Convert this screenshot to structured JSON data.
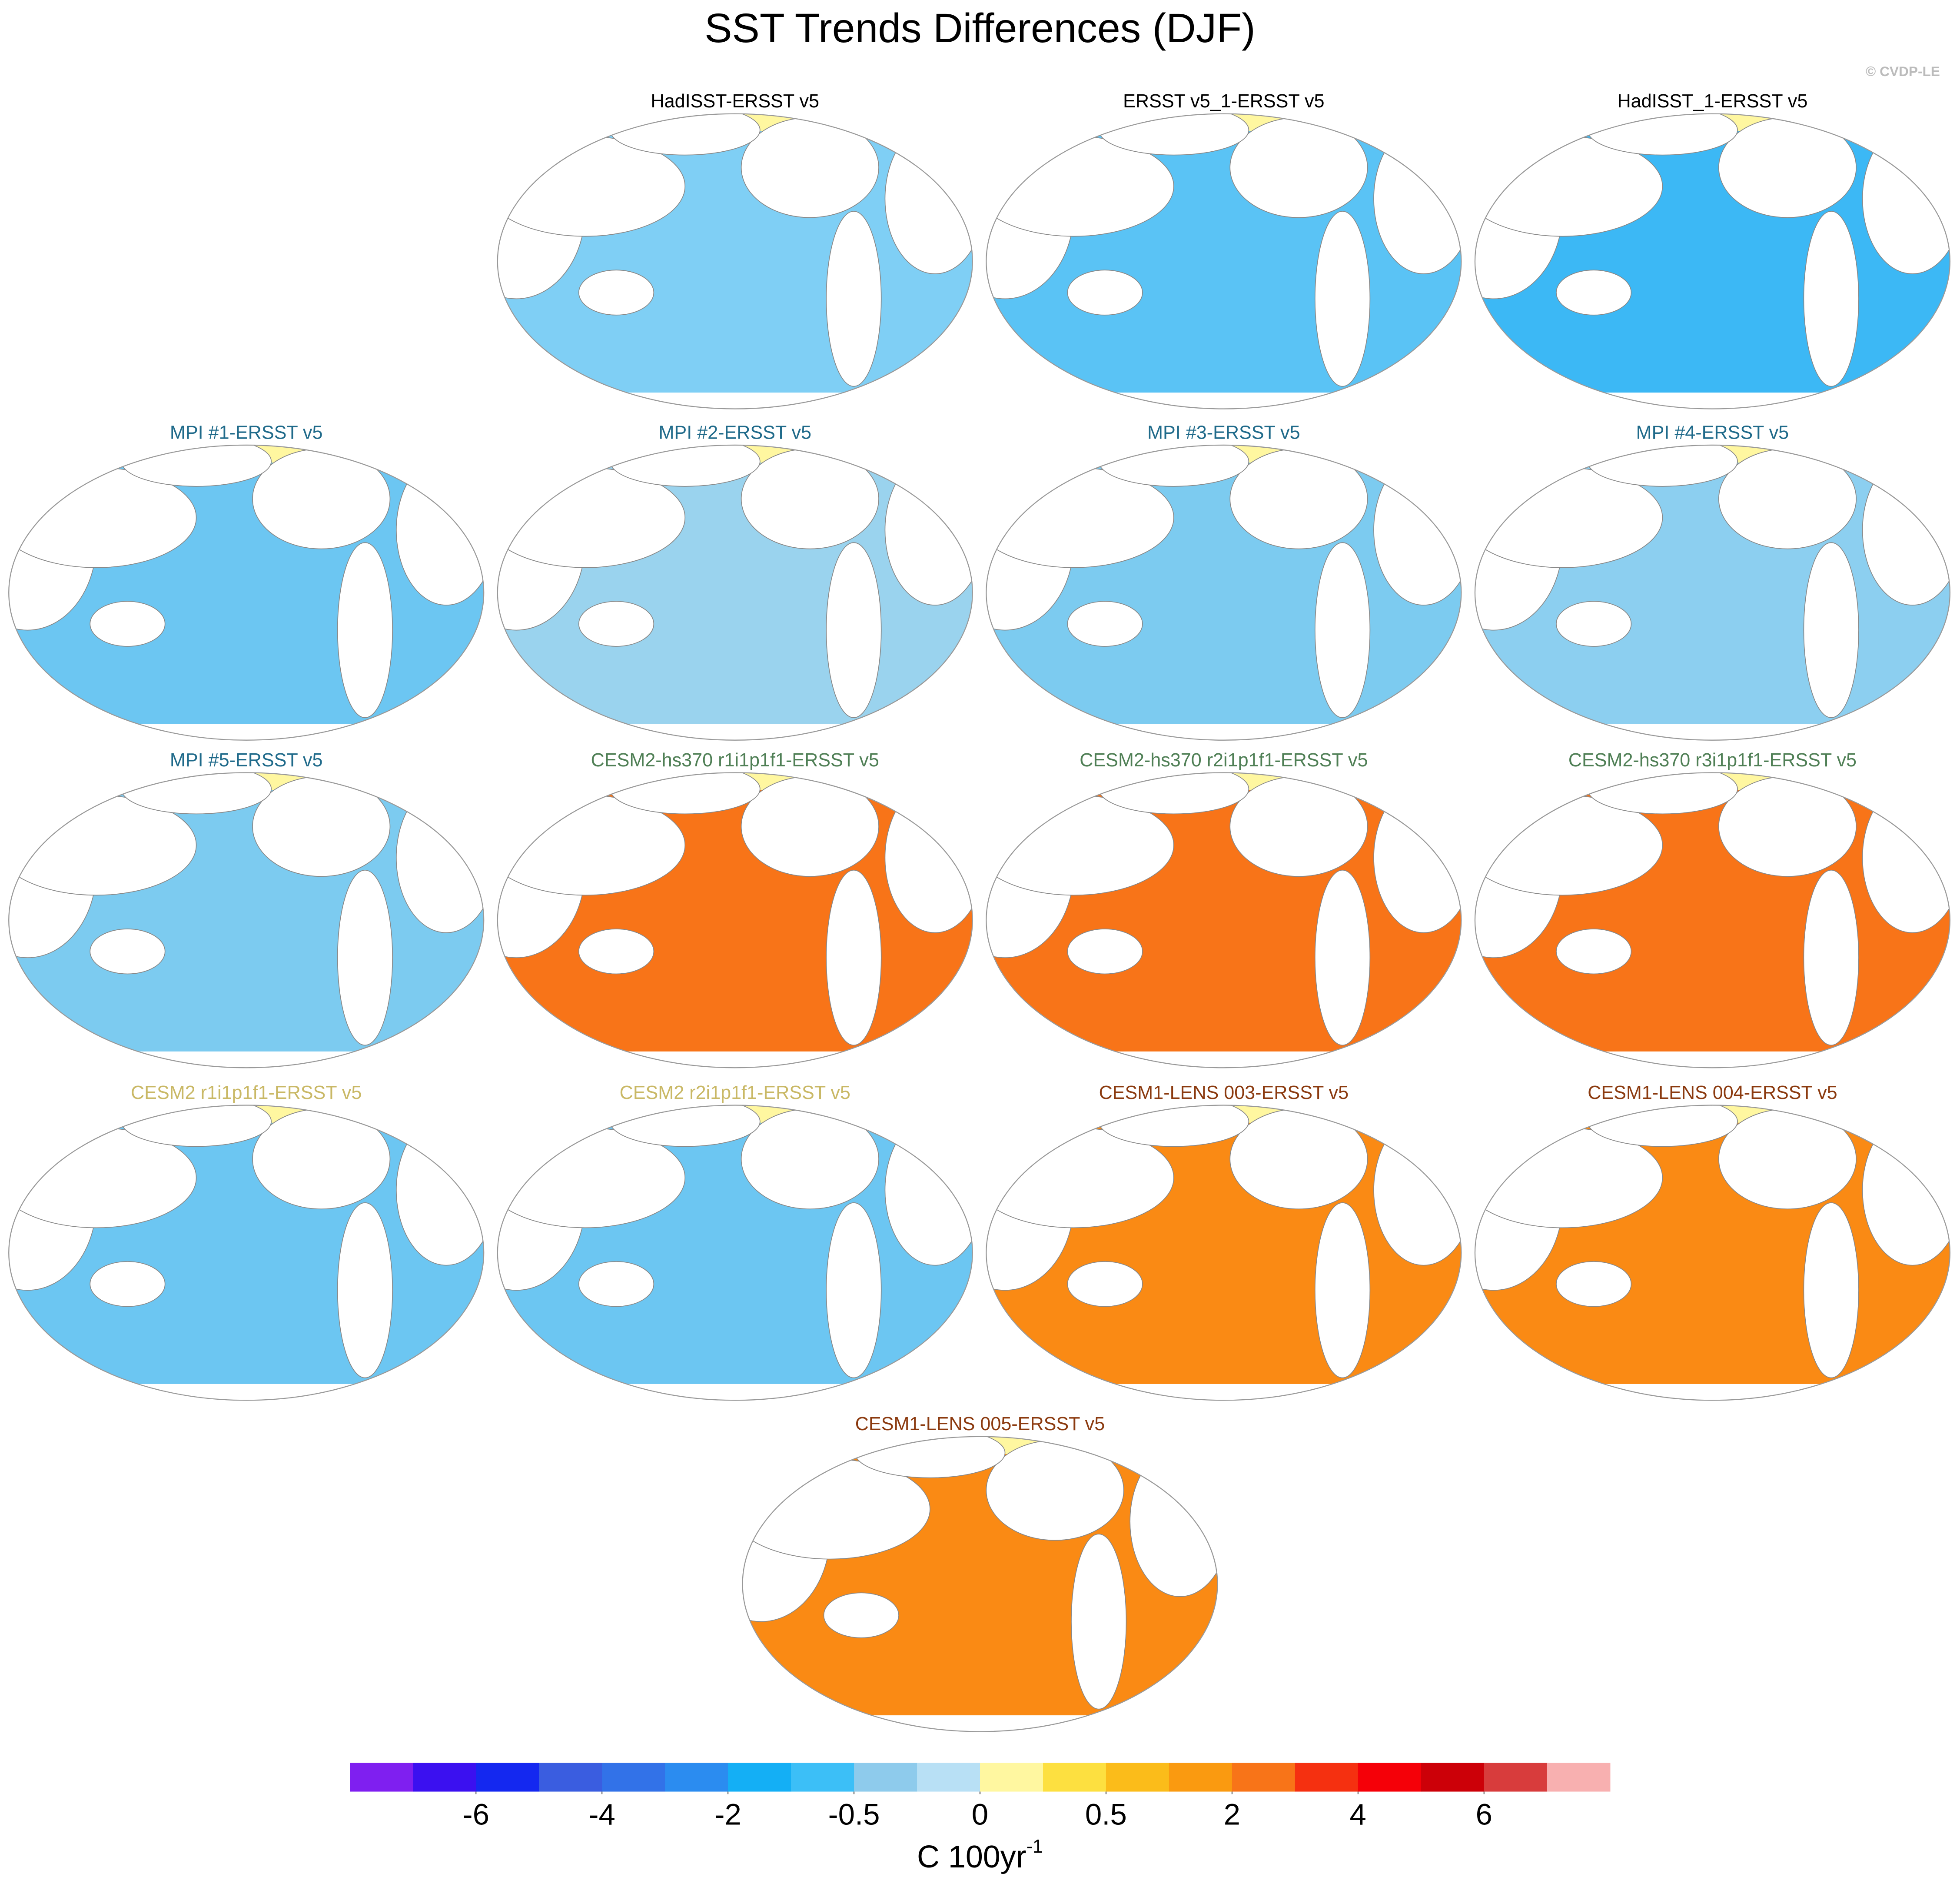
{
  "title": "SST Trends Differences (DJF)",
  "credit": "© CVDP-LE",
  "panels": [
    {
      "title": "HadISST-ERSST v5",
      "title_color": "#000000",
      "map_color": "#7fcff5"
    },
    {
      "title": "ERSST v5_1-ERSST v5",
      "title_color": "#000000",
      "map_color": "#5ac3f5"
    },
    {
      "title": "HadISST_1-ERSST v5",
      "title_color": "#000000",
      "map_color": "#3cb8f5"
    },
    {
      "title": "MPI #1-ERSST v5",
      "title_color": "#1f6a8a",
      "map_color": "#6cc6f2"
    },
    {
      "title": "MPI #2-ERSST v5",
      "title_color": "#1f6a8a",
      "map_color": "#9ad3ee"
    },
    {
      "title": "MPI #3-ERSST v5",
      "title_color": "#1f6a8a",
      "map_color": "#7ccbf0"
    },
    {
      "title": "MPI #4-ERSST v5",
      "title_color": "#1f6a8a",
      "map_color": "#8ccff0"
    },
    {
      "title": "MPI #5-ERSST v5",
      "title_color": "#1f6a8a",
      "map_color": "#7ccbf0"
    },
    {
      "title": "CESM2-hs370 r1i1p1f1-ERSST v5",
      "title_color": "#4f7f55",
      "map_color": "#f87418"
    },
    {
      "title": "CESM2-hs370 r2i1p1f1-ERSST v5",
      "title_color": "#4f7f55",
      "map_color": "#f87418"
    },
    {
      "title": "CESM2-hs370 r3i1p1f1-ERSST v5",
      "title_color": "#4f7f55",
      "map_color": "#f87418"
    },
    {
      "title": "CESM2 r1i1p1f1-ERSST v5",
      "title_color": "#c9b865",
      "map_color": "#6cc6f2"
    },
    {
      "title": "CESM2 r2i1p1f1-ERSST v5",
      "title_color": "#c9b865",
      "map_color": "#6cc6f2"
    },
    {
      "title": "CESM1-LENS 003-ERSST v5",
      "title_color": "#8b3a0f",
      "map_color": "#fa8a14"
    },
    {
      "title": "CESM1-LENS 004-ERSST v5",
      "title_color": "#8b3a0f",
      "map_color": "#fa8a14"
    },
    {
      "title": "CESM1-LENS 005-ERSST v5",
      "title_color": "#8b3a0f",
      "map_color": "#fa8a14"
    }
  ],
  "colorbar": {
    "colors": [
      "#7f1ff0",
      "#3b10f0",
      "#1428f0",
      "#3a5de0",
      "#3272e8",
      "#2b8cf0",
      "#14aff5",
      "#3cbff7",
      "#8ecbec",
      "#b8e0f5",
      "#fff7a0",
      "#fde040",
      "#fbbc1a",
      "#fa9a10",
      "#f87418",
      "#f53010",
      "#f50008",
      "#cc0008",
      "#d83c3c",
      "#f8b0b0"
    ],
    "ticks": [
      -6,
      -4,
      -2,
      -0.5,
      0,
      0.5,
      2,
      4,
      6
    ],
    "label": "C 100yr",
    "label_superscript": "-1"
  }
}
